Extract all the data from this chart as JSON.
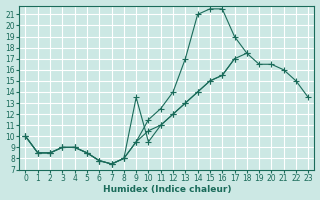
{
  "xlabel": "Humidex (Indice chaleur)",
  "bg_color": "#cce8e4",
  "grid_color": "#ffffff",
  "line_color": "#1a6b5a",
  "xlim": [
    -0.5,
    23.5
  ],
  "ylim": [
    7,
    21.8
  ],
  "xticks": [
    0,
    1,
    2,
    3,
    4,
    5,
    6,
    7,
    8,
    9,
    10,
    11,
    12,
    13,
    14,
    15,
    16,
    17,
    18,
    19,
    20,
    21,
    22,
    23
  ],
  "yticks": [
    7,
    8,
    9,
    10,
    11,
    12,
    13,
    14,
    15,
    16,
    17,
    18,
    19,
    20,
    21
  ],
  "series1_x": [
    0,
    1,
    2,
    3,
    4,
    5,
    6,
    7,
    8,
    9,
    10,
    11,
    12,
    13,
    14,
    15,
    16,
    17,
    18,
    19,
    20,
    21,
    22,
    23
  ],
  "series1_y": [
    10,
    8.5,
    8.5,
    9,
    9,
    8.5,
    7.8,
    7.5,
    8.0,
    9.5,
    11.5,
    12.5,
    14.0,
    17.0,
    21.0,
    21.5,
    21.5,
    19.0,
    17.5,
    null,
    null,
    null,
    null,
    null
  ],
  "series2_x": [
    0,
    1,
    2,
    3,
    4,
    5,
    6,
    7,
    8,
    9,
    10,
    11,
    12,
    13,
    14,
    15,
    16,
    17,
    18,
    19,
    20,
    21,
    22,
    23
  ],
  "series2_y": [
    10,
    8.5,
    8.5,
    9,
    9,
    8.5,
    7.8,
    7.5,
    8.0,
    13.5,
    9.5,
    11.0,
    12.0,
    13.0,
    14.0,
    15.0,
    15.5,
    17.0,
    null,
    null,
    null,
    null,
    null,
    null
  ],
  "series3_x": [
    0,
    1,
    2,
    3,
    4,
    5,
    6,
    7,
    8,
    9,
    10,
    11,
    12,
    13,
    14,
    15,
    16,
    17,
    18,
    19,
    20,
    21,
    22,
    23
  ],
  "series3_y": [
    10,
    8.5,
    8.5,
    9,
    9,
    8.5,
    7.8,
    7.5,
    8.0,
    9.5,
    10.5,
    11.0,
    12.0,
    13.0,
    14.0,
    15.0,
    15.5,
    17.0,
    17.5,
    16.5,
    16.5,
    16.0,
    15.0,
    13.5
  ]
}
